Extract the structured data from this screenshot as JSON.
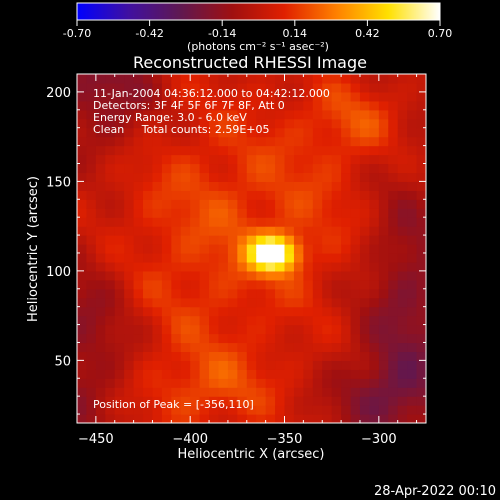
{
  "chart_data": {
    "type": "heatmap",
    "title": "Reconstructed RHESSI Image",
    "xlabel": "Heliocentric X (arcsec)",
    "ylabel": "Heliocentric Y (arcsec)",
    "xlim": [
      -460,
      -275
    ],
    "ylim": [
      15,
      210
    ],
    "xticks": [
      -450,
      -400,
      -350,
      -300
    ],
    "yticks": [
      50,
      100,
      150,
      200
    ],
    "colorbar": {
      "min": -0.7,
      "max": 0.7,
      "ticks": [
        "-0.70",
        "-0.42",
        "-0.14",
        "0.14",
        "0.42",
        "0.70"
      ],
      "unit_label": "(photons cm⁻² s⁻¹ asec⁻²)",
      "colors": [
        "#0000ff",
        "#4010a0",
        "#601850",
        "#a01010",
        "#e02000",
        "#ff8000",
        "#ffe000",
        "#ffffff"
      ]
    },
    "info_lines": [
      "11-Jan-2004 04:36:12.000 to 04:42:12.000",
      "Detectors: 3F 4F 5F 6F 7F 8F, Att 0",
      "Energy Range: 3.0 - 6.0 keV",
      "Clean     Total counts: 2.59E+05"
    ],
    "peak_label": "Position of Peak = [-356,110]",
    "peak": {
      "x": -356,
      "y": 110,
      "value": 0.7
    },
    "features": [
      {
        "x": -356,
        "y": 110,
        "sx": 9,
        "sy": 7,
        "amp": 0.7
      },
      {
        "x": -330,
        "y": 140,
        "sx": 60,
        "sy": 40,
        "amp": 0.1
      },
      {
        "x": -400,
        "y": 100,
        "sx": 45,
        "sy": 70,
        "amp": 0.12
      },
      {
        "x": -310,
        "y": 185,
        "sx": 20,
        "sy": 15,
        "amp": 0.14
      },
      {
        "x": -390,
        "y": 35,
        "sx": 25,
        "sy": 15,
        "amp": 0.12
      },
      {
        "x": -445,
        "y": 200,
        "sx": 20,
        "sy": 25,
        "amp": -0.22
      },
      {
        "x": -455,
        "y": 60,
        "sx": 20,
        "sy": 40,
        "amp": -0.2
      },
      {
        "x": -285,
        "y": 90,
        "sx": 18,
        "sy": 60,
        "amp": -0.22
      },
      {
        "x": -300,
        "y": 30,
        "sx": 20,
        "sy": 15,
        "amp": -0.16
      }
    ]
  },
  "footer": {
    "timestamp": "28-Apr-2022 00:10"
  }
}
